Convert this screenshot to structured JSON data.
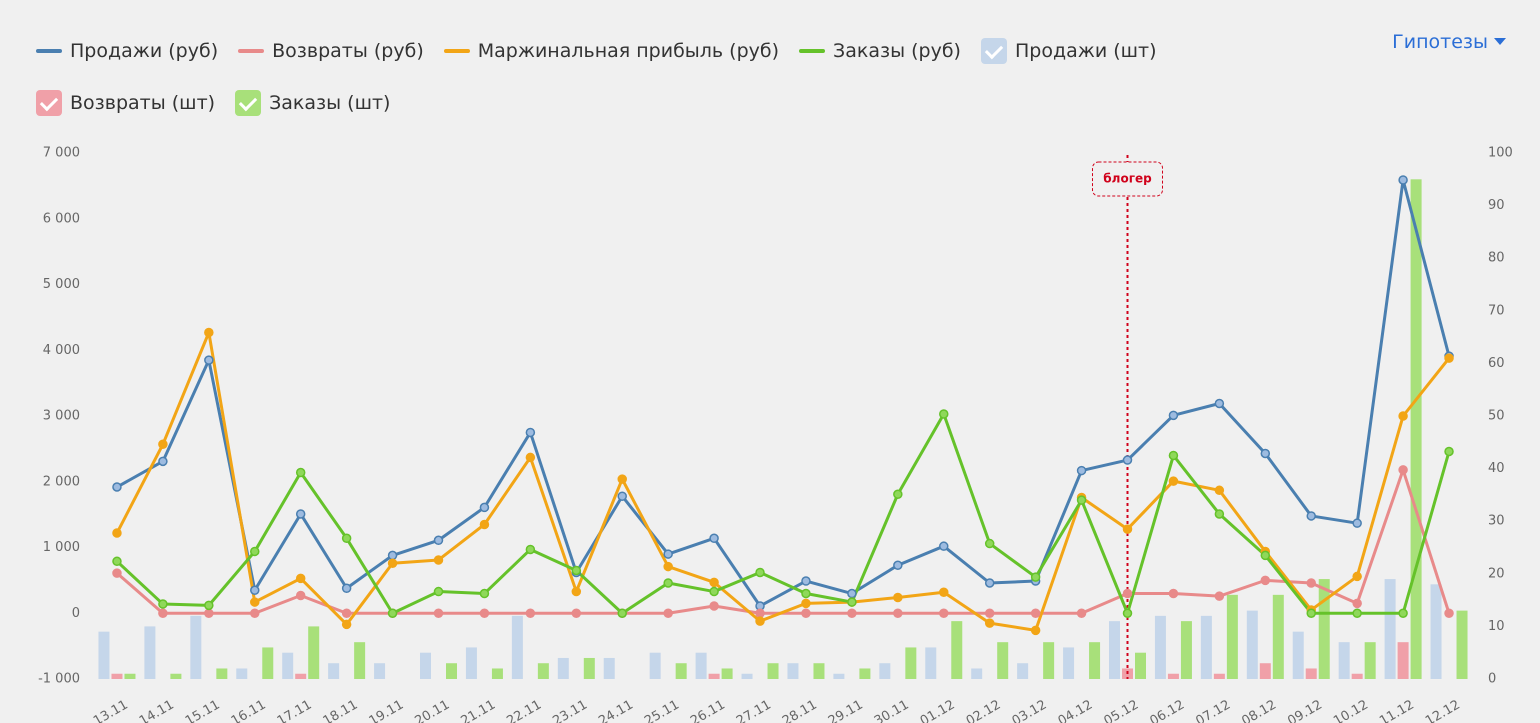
{
  "hypotheses_button": "Гипотезы",
  "chart_data": {
    "type": "line",
    "categories": [
      "13.11",
      "14.11",
      "15.11",
      "16.11",
      "17.11",
      "18.11",
      "19.11",
      "20.11",
      "21.11",
      "22.11",
      "23.11",
      "24.11",
      "25.11",
      "26.11",
      "27.11",
      "28.11",
      "29.11",
      "30.11",
      "01.12",
      "02.12",
      "03.12",
      "04.12",
      "05.12",
      "06.12",
      "07.12",
      "08.12",
      "09.12",
      "10.12",
      "11.12",
      "12.12"
    ],
    "series": [
      {
        "name": "Продажи (руб)",
        "type": "line",
        "color": "#4a7fb0",
        "marker_fill": "#9dbbe0",
        "values": [
          1920,
          2310,
          3850,
          350,
          1510,
          380,
          880,
          1110,
          1610,
          2750,
          620,
          1780,
          900,
          1140,
          110,
          490,
          300,
          730,
          1020,
          460,
          490,
          2170,
          2330,
          3010,
          3190,
          2430,
          1480,
          1370,
          6590,
          3910
        ]
      },
      {
        "name": "Возвраты (руб)",
        "type": "line",
        "color": "#e88a8a",
        "marker_fill": "#e88a8a",
        "values": [
          610,
          0,
          0,
          0,
          270,
          0,
          0,
          0,
          0,
          0,
          0,
          0,
          0,
          110,
          0,
          0,
          0,
          0,
          0,
          0,
          0,
          0,
          300,
          300,
          260,
          500,
          460,
          150,
          2180,
          0
        ]
      },
      {
        "name": "Маржинальная прибыль (руб)",
        "type": "line",
        "color": "#f2a516",
        "marker_fill": "#f2a516",
        "values": [
          1220,
          2570,
          4270,
          170,
          530,
          -170,
          760,
          810,
          1350,
          2370,
          330,
          2040,
          710,
          470,
          -120,
          150,
          170,
          240,
          320,
          -150,
          -260,
          1760,
          1280,
          2010,
          1870,
          940,
          50,
          560,
          3000,
          3880
        ]
      },
      {
        "name": "Заказы (руб)",
        "type": "line",
        "color": "#65c22a",
        "marker_fill": "#8fd85a",
        "values": [
          790,
          140,
          120,
          940,
          2140,
          1140,
          0,
          330,
          300,
          970,
          650,
          0,
          460,
          330,
          620,
          300,
          170,
          1810,
          3030,
          1060,
          550,
          1720,
          0,
          2400,
          1510,
          880,
          0,
          0,
          0,
          2460
        ]
      },
      {
        "name": "Продажи (шт)",
        "type": "bar",
        "axis": "y2",
        "color": "#c5d6ea",
        "values": [
          9,
          10,
          12,
          2,
          5,
          3,
          3,
          5,
          6,
          12,
          4,
          4,
          5,
          5,
          1,
          3,
          1,
          3,
          6,
          2,
          3,
          6,
          11,
          12,
          12,
          13,
          9,
          7,
          19,
          18
        ]
      },
      {
        "name": "Возвраты (шт)",
        "type": "bar",
        "axis": "y2",
        "color": "#f0a0a8",
        "values": [
          1,
          0,
          0,
          0,
          1,
          0,
          0,
          0,
          0,
          0,
          0,
          0,
          0,
          1,
          0,
          0,
          0,
          0,
          0,
          0,
          0,
          0,
          2,
          1,
          1,
          3,
          2,
          1,
          7,
          0
        ]
      },
      {
        "name": "Заказы (шт)",
        "type": "bar",
        "axis": "y2",
        "color": "#a8e07a",
        "values": [
          1,
          1,
          2,
          6,
          10,
          7,
          0,
          3,
          2,
          3,
          4,
          0,
          3,
          2,
          3,
          3,
          2,
          6,
          11,
          7,
          7,
          7,
          5,
          11,
          16,
          16,
          19,
          7,
          95,
          13
        ]
      }
    ],
    "ylim": [
      -1000,
      7000
    ],
    "yticks": [
      {
        "value": -1000,
        "label": "-1 000"
      },
      0,
      {
        "value": 1000,
        "label": "1 000"
      },
      {
        "value": 2000,
        "label": "2 000"
      },
      {
        "value": 3000,
        "label": "3 000"
      },
      {
        "value": 4000,
        "label": "4 000"
      },
      {
        "value": 5000,
        "label": "5 000"
      },
      {
        "value": 6000,
        "label": "6 000"
      },
      {
        "value": 7000,
        "label": "7 000"
      }
    ],
    "y2lim": [
      0,
      100
    ],
    "y2ticks": [
      0,
      10,
      20,
      30,
      40,
      50,
      60,
      70,
      80,
      90,
      100
    ],
    "annotation": {
      "label": "блогер",
      "x": "05.12",
      "color": "#d0021b"
    },
    "grid": false,
    "legend": "top"
  }
}
